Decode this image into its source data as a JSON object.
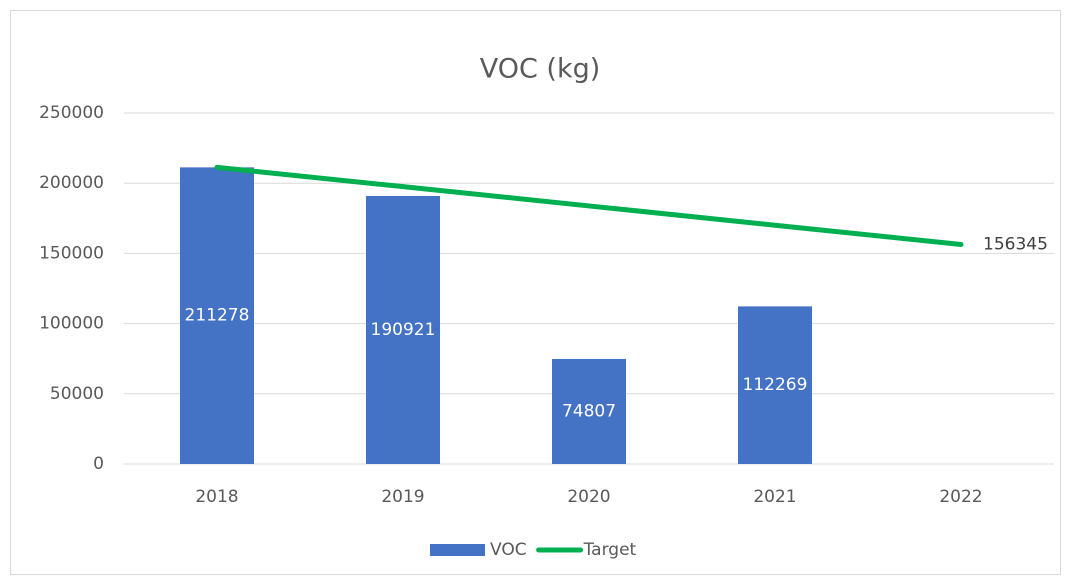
{
  "chart_data": {
    "type": "bar",
    "title": "VOC (kg)",
    "categories": [
      "2018",
      "2019",
      "2020",
      "2021",
      "2022"
    ],
    "series": [
      {
        "name": "VOC",
        "type": "bar",
        "color": "#4472c4",
        "values": [
          211278,
          190921,
          74807,
          112269,
          null
        ]
      },
      {
        "name": "Target",
        "type": "line",
        "color": "#00b050",
        "values": [
          211278,
          197545,
          183812,
          170078,
          156345
        ],
        "value_labels": [
          null,
          null,
          null,
          null,
          "156345"
        ]
      }
    ],
    "ylim": [
      0,
      250000
    ],
    "yticks": [
      0,
      50000,
      100000,
      150000,
      200000,
      250000
    ],
    "grid": true,
    "legend": "bottom"
  }
}
